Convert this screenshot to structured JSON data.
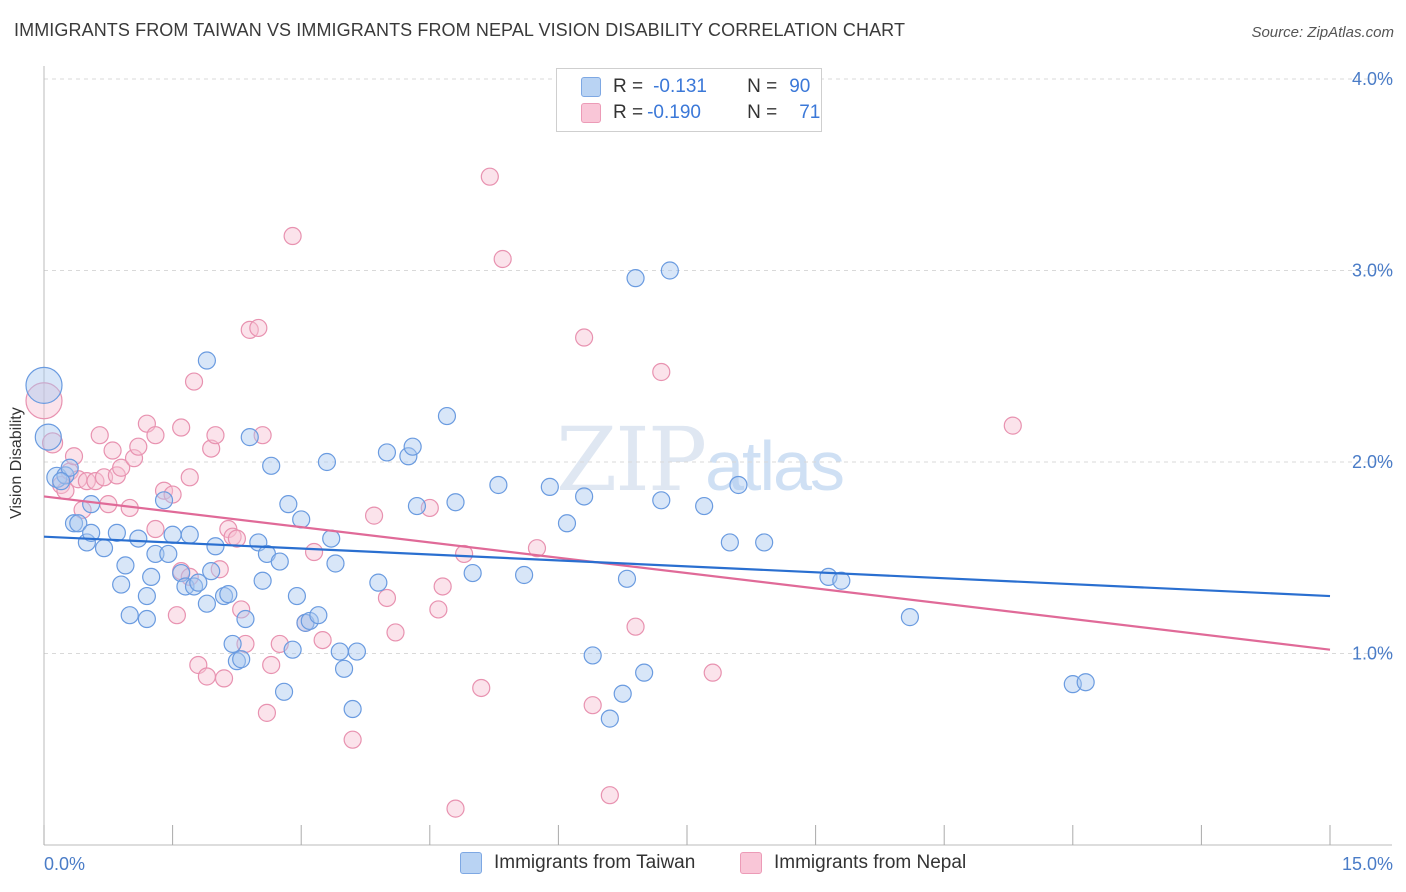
{
  "title": "IMMIGRANTS FROM TAIWAN VS IMMIGRANTS FROM NEPAL VISION DISABILITY CORRELATION CHART",
  "source": "Source: ZipAtlas.com",
  "watermark": {
    "zip": "ZIP",
    "atlas": "atlas"
  },
  "legend": {
    "taiwan": {
      "r_label": "R =",
      "r_value": "-0.131",
      "n_label": "N =",
      "n_value": "90"
    },
    "nepal": {
      "r_label": "R =",
      "r_value": "-0.190",
      "n_label": "N =",
      "n_value": "71"
    }
  },
  "bottom_legend": {
    "taiwan": "Immigrants from Taiwan",
    "nepal": "Immigrants from Nepal"
  },
  "colors": {
    "taiwan_fill": "#a8c8f0",
    "taiwan_stroke": "#6a9be0",
    "taiwan_line": "#2a6fd0",
    "nepal_fill": "#f7c0d2",
    "nepal_stroke": "#e892b0",
    "nepal_line": "#e06a98"
  },
  "chart_data": {
    "type": "scatter",
    "title": "IMMIGRANTS FROM TAIWAN VS IMMIGRANTS FROM NEPAL VISION DISABILITY CORRELATION CHART",
    "xlabel": "",
    "ylabel": "Vision Disability",
    "xlim": [
      0,
      15
    ],
    "ylim": [
      0,
      4.2
    ],
    "x_tick_labels": [
      "0.0%",
      "15.0%"
    ],
    "y_ticks": [
      1.0,
      2.0,
      3.0,
      4.0
    ],
    "y_tick_labels": [
      "1.0%",
      "2.0%",
      "3.0%",
      "4.0%"
    ],
    "grid": true,
    "series": [
      {
        "name": "Immigrants from Taiwan",
        "trend": {
          "x": [
            0,
            15
          ],
          "y": [
            1.61,
            1.3
          ]
        },
        "points": [
          [
            0.0,
            2.4,
            1
          ],
          [
            0.05,
            2.13,
            1
          ],
          [
            0.15,
            1.92,
            1
          ],
          [
            0.25,
            1.93,
            1
          ],
          [
            0.3,
            1.97,
            1
          ],
          [
            0.35,
            1.68,
            1
          ],
          [
            0.4,
            1.68,
            1
          ],
          [
            0.5,
            1.58,
            1
          ],
          [
            0.55,
            1.78,
            1
          ],
          [
            0.55,
            1.63,
            1
          ],
          [
            0.7,
            1.55,
            1
          ],
          [
            0.85,
            1.63,
            1
          ],
          [
            0.9,
            1.36,
            1
          ],
          [
            0.95,
            1.46,
            1
          ],
          [
            1.0,
            1.2,
            1
          ],
          [
            1.1,
            1.6,
            1
          ],
          [
            1.2,
            1.3,
            1
          ],
          [
            1.25,
            1.4,
            1
          ],
          [
            1.3,
            1.52,
            1
          ],
          [
            1.4,
            1.8,
            1
          ],
          [
            1.45,
            1.52,
            1
          ],
          [
            1.5,
            1.62,
            1
          ],
          [
            1.6,
            1.42,
            1
          ],
          [
            1.65,
            1.35,
            1
          ],
          [
            1.7,
            1.62,
            1
          ],
          [
            1.75,
            1.35,
            1
          ],
          [
            1.8,
            1.37,
            1
          ],
          [
            1.9,
            2.53,
            1
          ],
          [
            1.95,
            1.43,
            1
          ],
          [
            1.9,
            1.26,
            1
          ],
          [
            2.0,
            1.56,
            1
          ],
          [
            2.1,
            1.3,
            1
          ],
          [
            2.15,
            1.31,
            1
          ],
          [
            2.2,
            1.05,
            1
          ],
          [
            2.25,
            0.96,
            1
          ],
          [
            2.3,
            0.97,
            1
          ],
          [
            2.35,
            1.18,
            1
          ],
          [
            2.4,
            2.13,
            1
          ],
          [
            2.5,
            1.58,
            1
          ],
          [
            2.55,
            1.38,
            1
          ],
          [
            2.6,
            1.52,
            1
          ],
          [
            2.65,
            1.98,
            1
          ],
          [
            2.75,
            1.48,
            1
          ],
          [
            2.8,
            0.8,
            1
          ],
          [
            2.85,
            1.78,
            1
          ],
          [
            2.9,
            1.02,
            1
          ],
          [
            2.95,
            1.3,
            1
          ],
          [
            3.0,
            1.7,
            1
          ],
          [
            3.05,
            1.16,
            1
          ],
          [
            3.1,
            1.17,
            1
          ],
          [
            3.2,
            1.2,
            1
          ],
          [
            3.3,
            2.0,
            1
          ],
          [
            3.35,
            1.6,
            1
          ],
          [
            3.4,
            1.47,
            1
          ],
          [
            3.45,
            1.01,
            1
          ],
          [
            3.5,
            0.92,
            1
          ],
          [
            3.6,
            0.71,
            1
          ],
          [
            3.65,
            1.01,
            1
          ],
          [
            3.9,
            1.37,
            1
          ],
          [
            4.0,
            2.05,
            1
          ],
          [
            4.25,
            2.03,
            1
          ],
          [
            4.3,
            2.08,
            1
          ],
          [
            4.35,
            1.77,
            1
          ],
          [
            4.7,
            2.24,
            1
          ],
          [
            4.8,
            1.79,
            1
          ],
          [
            5.0,
            1.42,
            1
          ],
          [
            5.3,
            1.88,
            1
          ],
          [
            5.6,
            1.41,
            1
          ],
          [
            5.9,
            1.87,
            1
          ],
          [
            6.1,
            1.68,
            1
          ],
          [
            6.3,
            1.82,
            1
          ],
          [
            6.4,
            0.99,
            1
          ],
          [
            6.6,
            0.66,
            1
          ],
          [
            6.75,
            0.79,
            1
          ],
          [
            6.8,
            1.39,
            1
          ],
          [
            6.9,
            2.96,
            1
          ],
          [
            7.0,
            0.9,
            1
          ],
          [
            7.2,
            1.8,
            1
          ],
          [
            7.3,
            3.0,
            1
          ],
          [
            7.7,
            1.77,
            1
          ],
          [
            8.0,
            1.58,
            1
          ],
          [
            8.1,
            1.88,
            1
          ],
          [
            8.4,
            1.58,
            1
          ],
          [
            9.15,
            1.4,
            1
          ],
          [
            9.3,
            1.38,
            1
          ],
          [
            10.1,
            1.19,
            1
          ],
          [
            12.0,
            0.84,
            1
          ],
          [
            12.15,
            0.85,
            1
          ],
          [
            0.2,
            1.9,
            1
          ],
          [
            1.2,
            1.18,
            1
          ]
        ]
      },
      {
        "name": "Immigrants from Nepal",
        "trend": {
          "x": [
            0,
            15
          ],
          "y": [
            1.82,
            1.02
          ]
        },
        "points": [
          [
            0.0,
            2.32,
            1
          ],
          [
            0.1,
            2.1,
            1
          ],
          [
            0.2,
            1.88,
            1
          ],
          [
            0.25,
            1.85,
            1
          ],
          [
            0.3,
            1.95,
            1
          ],
          [
            0.35,
            2.03,
            1
          ],
          [
            0.4,
            1.91,
            1
          ],
          [
            0.45,
            1.75,
            1
          ],
          [
            0.5,
            1.9,
            1
          ],
          [
            0.6,
            1.9,
            1
          ],
          [
            0.65,
            2.14,
            1
          ],
          [
            0.7,
            1.92,
            1
          ],
          [
            0.75,
            1.78,
            1
          ],
          [
            0.8,
            2.06,
            1
          ],
          [
            0.85,
            1.93,
            1
          ],
          [
            0.9,
            1.97,
            1
          ],
          [
            1.0,
            1.76,
            1
          ],
          [
            1.05,
            2.02,
            1
          ],
          [
            1.1,
            2.08,
            1
          ],
          [
            1.2,
            2.2,
            1
          ],
          [
            1.3,
            1.65,
            1
          ],
          [
            1.3,
            2.14,
            1
          ],
          [
            1.4,
            1.85,
            1
          ],
          [
            1.5,
            1.83,
            1
          ],
          [
            1.55,
            1.2,
            1
          ],
          [
            1.6,
            1.43,
            1
          ],
          [
            1.7,
            1.4,
            1
          ],
          [
            1.6,
            2.18,
            1
          ],
          [
            1.7,
            1.92,
            1
          ],
          [
            1.75,
            2.42,
            1
          ],
          [
            1.8,
            0.94,
            1
          ],
          [
            1.9,
            0.88,
            1
          ],
          [
            1.95,
            2.07,
            1
          ],
          [
            2.0,
            2.14,
            1
          ],
          [
            2.05,
            1.44,
            1
          ],
          [
            2.1,
            0.87,
            1
          ],
          [
            2.15,
            1.65,
            1
          ],
          [
            2.2,
            1.61,
            1
          ],
          [
            2.25,
            1.6,
            1
          ],
          [
            2.3,
            1.23,
            1
          ],
          [
            2.35,
            1.05,
            1
          ],
          [
            2.4,
            2.69,
            1
          ],
          [
            2.5,
            2.7,
            1
          ],
          [
            2.55,
            2.14,
            1
          ],
          [
            2.6,
            0.69,
            1
          ],
          [
            2.65,
            0.94,
            1
          ],
          [
            2.75,
            1.05,
            1
          ],
          [
            2.9,
            3.18,
            1
          ],
          [
            3.05,
            1.16,
            1
          ],
          [
            3.15,
            1.53,
            1
          ],
          [
            3.25,
            1.07,
            1
          ],
          [
            3.6,
            0.55,
            1
          ],
          [
            3.85,
            1.72,
            1
          ],
          [
            4.0,
            1.29,
            1
          ],
          [
            4.1,
            1.11,
            1
          ],
          [
            4.5,
            1.76,
            1
          ],
          [
            4.6,
            1.23,
            1
          ],
          [
            4.65,
            1.35,
            1
          ],
          [
            4.8,
            0.19,
            1
          ],
          [
            4.9,
            1.52,
            1
          ],
          [
            5.1,
            0.82,
            1
          ],
          [
            5.2,
            3.49,
            1
          ],
          [
            5.35,
            3.06,
            1
          ],
          [
            5.75,
            1.55,
            1
          ],
          [
            6.3,
            2.65,
            1
          ],
          [
            6.4,
            0.73,
            1
          ],
          [
            6.6,
            0.26,
            1
          ],
          [
            6.9,
            1.14,
            1
          ],
          [
            7.2,
            2.47,
            1
          ],
          [
            7.8,
            0.9,
            1
          ],
          [
            11.3,
            2.19,
            1
          ]
        ]
      }
    ]
  }
}
